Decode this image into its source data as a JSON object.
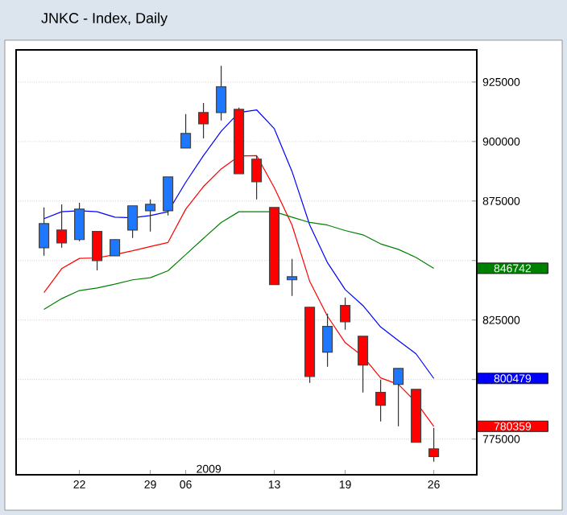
{
  "chart_data": {
    "type": "candlestick",
    "title": "JNKC - Index, Daily",
    "categories": [
      null,
      null,
      "22",
      null,
      null,
      null,
      "29",
      null,
      "06",
      null,
      null,
      null,
      null,
      "13",
      null,
      null,
      null,
      "19",
      null,
      null,
      null,
      null,
      "26"
    ],
    "ohlc": [
      [
        855400,
        872300,
        852000,
        865500
      ],
      [
        862800,
        873600,
        855400,
        857400
      ],
      [
        858800,
        874300,
        858100,
        871600
      ],
      [
        862200,
        862200,
        845900,
        850000
      ],
      [
        852000,
        858800,
        852000,
        858800
      ],
      [
        862800,
        873000,
        859500,
        873000
      ],
      [
        870900,
        875700,
        862200,
        873600
      ],
      [
        870900,
        885100,
        868900,
        885100
      ],
      [
        897300,
        911500,
        897300,
        903400
      ],
      [
        912200,
        916200,
        901300,
        907400
      ],
      [
        912200,
        931800,
        908800,
        923000
      ],
      [
        913500,
        914200,
        886500,
        886500
      ],
      [
        892600,
        893900,
        875700,
        883100
      ],
      [
        872300,
        872300,
        839900,
        839900
      ],
      [
        841900,
        850700,
        835100,
        843200
      ],
      [
        830400,
        830400,
        798600,
        801300
      ],
      [
        811500,
        827700,
        805400,
        822300
      ],
      [
        831100,
        834500,
        820900,
        824300
      ],
      [
        818200,
        818200,
        794600,
        806100
      ],
      [
        794600,
        800000,
        782400,
        789200
      ],
      [
        798000,
        804700,
        780400,
        804700
      ],
      [
        795900,
        795900,
        773600,
        773600
      ],
      [
        770900,
        779700,
        765500,
        767600
      ]
    ],
    "colors": [
      "#1e78ff",
      "#ff0000",
      "#1e78ff",
      "#ff0000",
      "#1e78ff",
      "#1e78ff",
      "#1e78ff",
      "#1e78ff",
      "#1e78ff",
      "#ff0000",
      "#1e78ff",
      "#ff0000",
      "#ff0000",
      "#ff0000",
      "#1e78ff",
      "#ff0000",
      "#1e78ff",
      "#ff0000",
      "#ff0000",
      "#ff0000",
      "#1e78ff",
      "#ff0000",
      "#ff0000"
    ],
    "series": [
      {
        "type": "line",
        "color": "#0000ff",
        "values": [
          867600,
          870500,
          870900,
          870500,
          868200,
          868000,
          868900,
          870500,
          882900,
          894100,
          904300,
          912200,
          913300,
          905400,
          887400,
          864900,
          849100,
          837800,
          831100,
          822100,
          816400,
          810800,
          800479
        ]
      },
      {
        "type": "line",
        "color": "#ff0000",
        "values": [
          836500,
          846600,
          850900,
          851100,
          852500,
          854100,
          855900,
          857600,
          871600,
          881100,
          888500,
          893900,
          894100,
          880600,
          864900,
          841200,
          826600,
          815500,
          809700,
          800700,
          798000,
          790500,
          780359
        ]
      },
      {
        "type": "line",
        "color": "#008000",
        "values": [
          829500,
          834000,
          837400,
          838500,
          840100,
          841900,
          842800,
          845700,
          852500,
          859300,
          866000,
          870500,
          870500,
          870500,
          868200,
          866000,
          864900,
          862600,
          860800,
          857000,
          854700,
          851300,
          846742
        ]
      }
    ],
    "ylim": [
      760000,
      938500
    ],
    "yticks": [
      775000,
      800000,
      825000,
      {
        "value": 850000,
        "label": null
      },
      875000,
      900000,
      925000
    ],
    "grid": "y",
    "annotations": [
      "2009",
      "800479",
      "780359",
      "846742"
    ]
  }
}
